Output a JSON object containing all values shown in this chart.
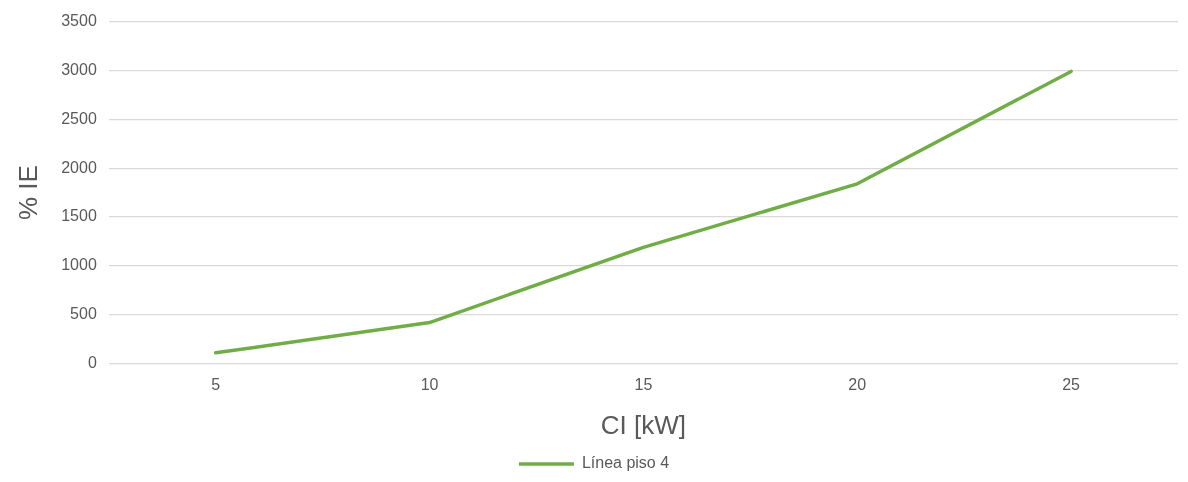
{
  "chart_data": {
    "type": "line",
    "xlabel": "CI [kW]",
    "ylabel": "% IE",
    "categories": [
      "5",
      "10",
      "15",
      "20",
      "25"
    ],
    "series": [
      {
        "name": "Línea piso 4",
        "color": "#70ad47",
        "values": [
          110,
          420,
          1190,
          1840,
          2990
        ]
      }
    ],
    "ylim": [
      0,
      3500
    ],
    "yticks": [
      0,
      500,
      1000,
      1500,
      2000,
      2500,
      3000,
      3500
    ],
    "grid": "y",
    "legend": "bottom",
    "marker": "none",
    "line_style": "solid"
  }
}
